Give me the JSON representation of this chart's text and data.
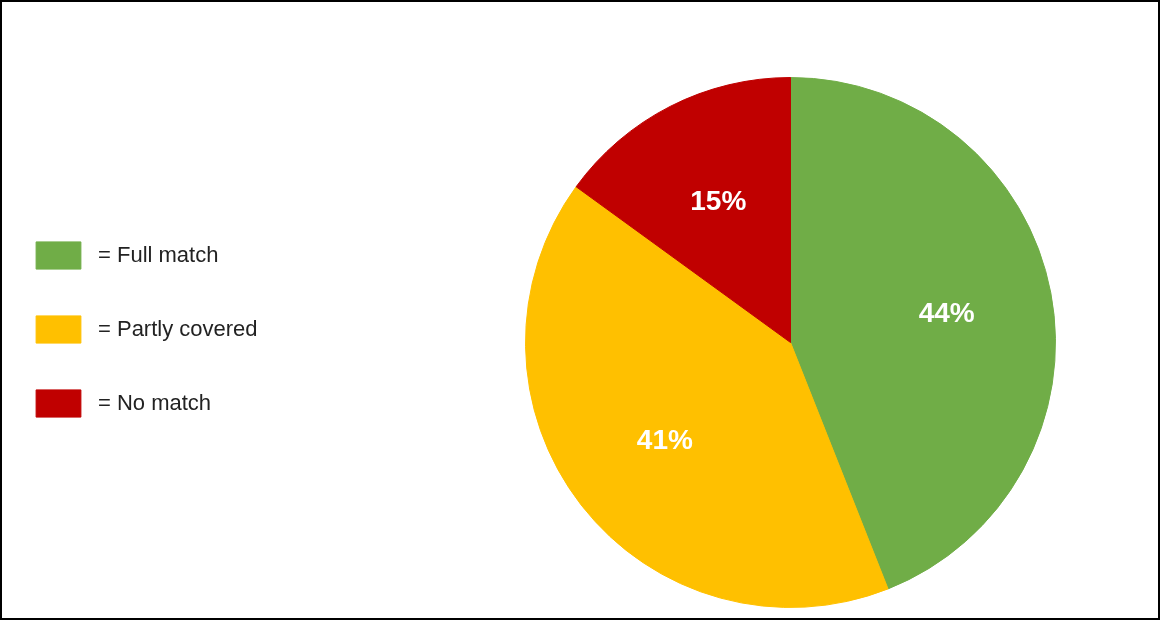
{
  "chart_data": {
    "type": "pie",
    "categories": [
      "= Full match",
      "= Partly covered",
      "= No match"
    ],
    "values": [
      44,
      41,
      15
    ],
    "colors": [
      "#70ad47",
      "#ffc000",
      "#c00000"
    ],
    "value_labels": [
      "44%",
      "41%",
      "15%"
    ],
    "legend": "left"
  }
}
